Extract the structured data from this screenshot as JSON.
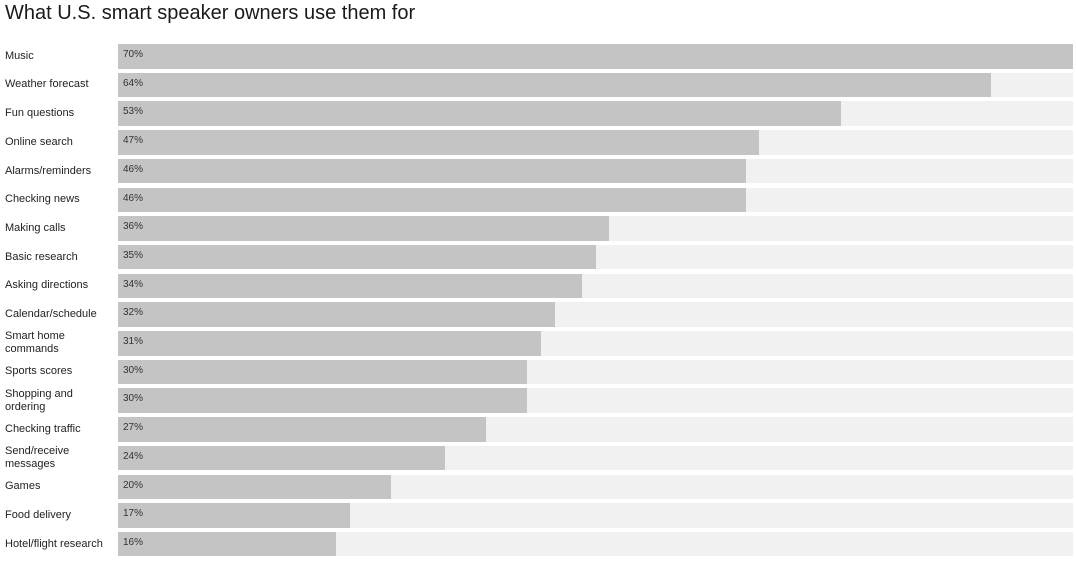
{
  "chart_data": {
    "type": "bar",
    "orientation": "horizontal",
    "title": "What U.S. smart speaker owners use them for",
    "xlim": [
      0,
      70
    ],
    "categories": [
      "Music",
      "Weather forecast",
      "Fun questions",
      "Online search",
      "Alarms/reminders",
      "Checking news",
      "Making calls",
      "Basic research",
      "Asking directions",
      "Calendar/schedule",
      "Smart home commands",
      "Sports scores",
      "Shopping and ordering",
      "Checking traffic",
      "Send/receive messages",
      "Games",
      "Food delivery",
      "Hotel/flight research"
    ],
    "values": [
      70,
      64,
      53,
      47,
      46,
      46,
      36,
      35,
      34,
      32,
      31,
      30,
      30,
      27,
      24,
      20,
      17,
      16
    ],
    "labels": [
      "70%",
      "64%",
      "53%",
      "47%",
      "46%",
      "46%",
      "36%",
      "35%",
      "34%",
      "32%",
      "31%",
      "30%",
      "30%",
      "27%",
      "24%",
      "20%",
      "17%",
      "16%"
    ],
    "colors": {
      "bar": "#c4c4c4",
      "track": "#f1f1f1"
    }
  }
}
